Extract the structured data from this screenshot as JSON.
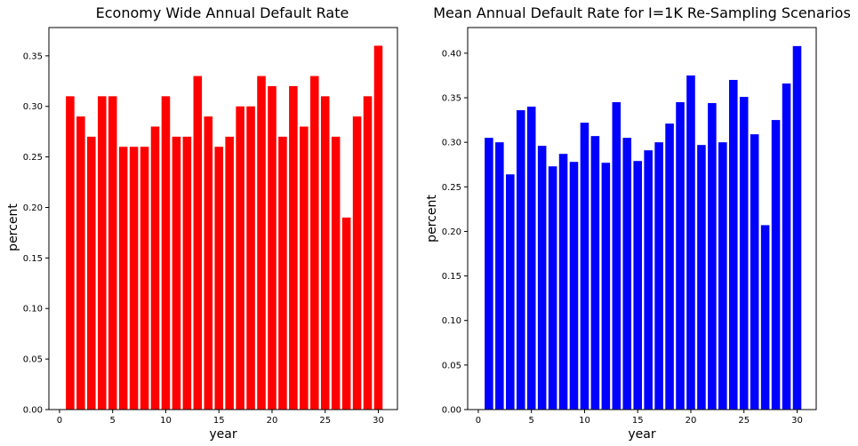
{
  "chart_data": [
    {
      "type": "bar",
      "title": "Economy Wide Annual Default Rate",
      "xlabel": "year",
      "ylabel": "percent",
      "color": "#ff0000",
      "xlim": [
        -1.0,
        31.8
      ],
      "ylim": [
        0.0,
        0.378
      ],
      "xticks": [
        0,
        5,
        10,
        15,
        20,
        25,
        30
      ],
      "xtick_labels": [
        "0",
        "5",
        "10",
        "15",
        "20",
        "25",
        "30"
      ],
      "yticks": [
        0.0,
        0.05,
        0.1,
        0.15,
        0.2,
        0.25,
        0.3,
        0.35
      ],
      "ytick_labels": [
        "0.00",
        "0.05",
        "0.10",
        "0.15",
        "0.20",
        "0.25",
        "0.30",
        "0.35"
      ],
      "grid": false,
      "x": [
        1,
        2,
        3,
        4,
        5,
        6,
        7,
        8,
        9,
        10,
        11,
        12,
        13,
        14,
        15,
        16,
        17,
        18,
        19,
        20,
        21,
        22,
        23,
        24,
        25,
        26,
        27,
        28,
        29,
        30
      ],
      "values": [
        0.31,
        0.29,
        0.27,
        0.31,
        0.31,
        0.26,
        0.26,
        0.26,
        0.28,
        0.31,
        0.27,
        0.27,
        0.33,
        0.29,
        0.26,
        0.27,
        0.3,
        0.3,
        0.33,
        0.32,
        0.27,
        0.32,
        0.28,
        0.33,
        0.31,
        0.27,
        0.19,
        0.29,
        0.31,
        0.36
      ]
    },
    {
      "type": "bar",
      "title": "Mean Annual Default Rate for I=1K Re-Sampling Scenarios",
      "xlabel": "year",
      "ylabel": "percent",
      "color": "#0000ff",
      "xlim": [
        -1.0,
        31.8
      ],
      "ylim": [
        0.0,
        0.4288
      ],
      "xticks": [
        0,
        5,
        10,
        15,
        20,
        25,
        30
      ],
      "xtick_labels": [
        "0",
        "5",
        "10",
        "15",
        "20",
        "25",
        "30"
      ],
      "yticks": [
        0.0,
        0.05,
        0.1,
        0.15,
        0.2,
        0.25,
        0.3,
        0.35,
        0.4
      ],
      "ytick_labels": [
        "0.00",
        "0.05",
        "0.10",
        "0.15",
        "0.20",
        "0.25",
        "0.30",
        "0.35",
        "0.40"
      ],
      "grid": false,
      "x": [
        1,
        2,
        3,
        4,
        5,
        6,
        7,
        8,
        9,
        10,
        11,
        12,
        13,
        14,
        15,
        16,
        17,
        18,
        19,
        20,
        21,
        22,
        23,
        24,
        25,
        26,
        27,
        28,
        29,
        30
      ],
      "values": [
        0.305,
        0.3,
        0.264,
        0.336,
        0.34,
        0.296,
        0.273,
        0.287,
        0.278,
        0.322,
        0.307,
        0.277,
        0.345,
        0.305,
        0.279,
        0.291,
        0.3,
        0.321,
        0.345,
        0.375,
        0.297,
        0.344,
        0.3,
        0.37,
        0.351,
        0.309,
        0.207,
        0.325,
        0.366,
        0.408
      ]
    }
  ]
}
